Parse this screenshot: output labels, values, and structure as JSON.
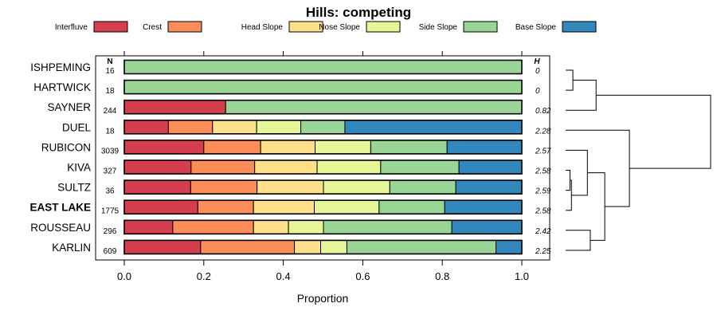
{
  "chart_data": {
    "type": "bar",
    "orientation": "horizontal",
    "stacked": true,
    "title": "Hills: competing",
    "xlabel": "Proportion",
    "xlim": [
      0,
      1
    ],
    "xticks": [
      "0.0",
      "0.2",
      "0.4",
      "0.6",
      "0.8",
      "1.0"
    ],
    "n_header": "N",
    "h_header": "H",
    "legend": [
      {
        "name": "Interfluve",
        "color": "#D53E4F"
      },
      {
        "name": "Crest",
        "color": "#FC8D59"
      },
      {
        "name": "Head Slope",
        "color": "#FEE08B"
      },
      {
        "name": "Nose Slope",
        "color": "#E6F598"
      },
      {
        "name": "Side Slope",
        "color": "#99D594"
      },
      {
        "name": "Base Slope",
        "color": "#3288BD"
      }
    ],
    "rows": [
      {
        "label": "ISHPEMING",
        "bold": false,
        "n": "16",
        "h": "0",
        "values": [
          0,
          0,
          0,
          0,
          1.0,
          0
        ]
      },
      {
        "label": "HARTWICK",
        "bold": false,
        "n": "18",
        "h": "0",
        "values": [
          0,
          0,
          0,
          0,
          1.0,
          0
        ]
      },
      {
        "label": "SAYNER",
        "bold": false,
        "n": "244",
        "h": "0.82",
        "values": [
          0.255,
          0,
          0,
          0,
          0.745,
          0
        ]
      },
      {
        "label": "DUEL",
        "bold": false,
        "n": "18",
        "h": "2.28",
        "values": [
          0.111,
          0.111,
          0.111,
          0.111,
          0.111,
          0.445
        ]
      },
      {
        "label": "RUBICON",
        "bold": false,
        "n": "3039",
        "h": "2.57",
        "values": [
          0.2,
          0.143,
          0.137,
          0.14,
          0.192,
          0.188
        ]
      },
      {
        "label": "KIVA",
        "bold": false,
        "n": "327",
        "h": "2.58",
        "values": [
          0.168,
          0.16,
          0.157,
          0.16,
          0.197,
          0.158
        ]
      },
      {
        "label": "SULTZ",
        "bold": false,
        "n": "36",
        "h": "2.59",
        "values": [
          0.167,
          0.167,
          0.167,
          0.167,
          0.166,
          0.166
        ]
      },
      {
        "label": "EAST LAKE",
        "bold": true,
        "n": "1775",
        "h": "2.58",
        "values": [
          0.185,
          0.14,
          0.153,
          0.163,
          0.165,
          0.194
        ]
      },
      {
        "label": "ROUSSEAU",
        "bold": false,
        "n": "296",
        "h": "2.42",
        "values": [
          0.122,
          0.203,
          0.088,
          0.088,
          0.323,
          0.176
        ]
      },
      {
        "label": "KARLIN",
        "bold": false,
        "n": "609",
        "h": "2.25",
        "values": [
          0.192,
          0.236,
          0.066,
          0.066,
          0.375,
          0.065
        ]
      }
    ],
    "dendrogram": {
      "leaves": [
        "ISHPEMING",
        "HARTWICK",
        "SAYNER",
        "DUEL",
        "RUBICON",
        "KIVA",
        "SULTZ",
        "EAST LAKE",
        "ROUSSEAU",
        "KARLIN"
      ],
      "merges": [
        {
          "a": "ISHPEMING",
          "b": "HARTWICK",
          "height": 0.05
        },
        {
          "a": "KIVA",
          "b": "SULTZ",
          "height": 0.03
        },
        {
          "a": "(ISHPEMING,HARTWICK)",
          "b": "SAYNER",
          "height": 0.21
        },
        {
          "a": "(KIVA,SULTZ)",
          "b": "EAST LAKE",
          "height": 0.04
        },
        {
          "a": "RUBICON",
          "b": "(KIVA,SULTZ,EAST LAKE)",
          "height": 0.15
        },
        {
          "a": "ROUSSEAU",
          "b": "KARLIN",
          "height": 0.17
        },
        {
          "a": "(RUBICON,KIVA,SULTZ,EAST LAKE)",
          "b": "(ROUSSEAU,KARLIN)",
          "height": 0.27
        },
        {
          "a": "DUEL",
          "b": "(RUBICON..KARLIN)",
          "height": 0.44
        },
        {
          "a": "(ISHPEMING,HARTWICK,SAYNER)",
          "b": "(DUEL..KARLIN)",
          "height": 1.0
        }
      ]
    }
  }
}
